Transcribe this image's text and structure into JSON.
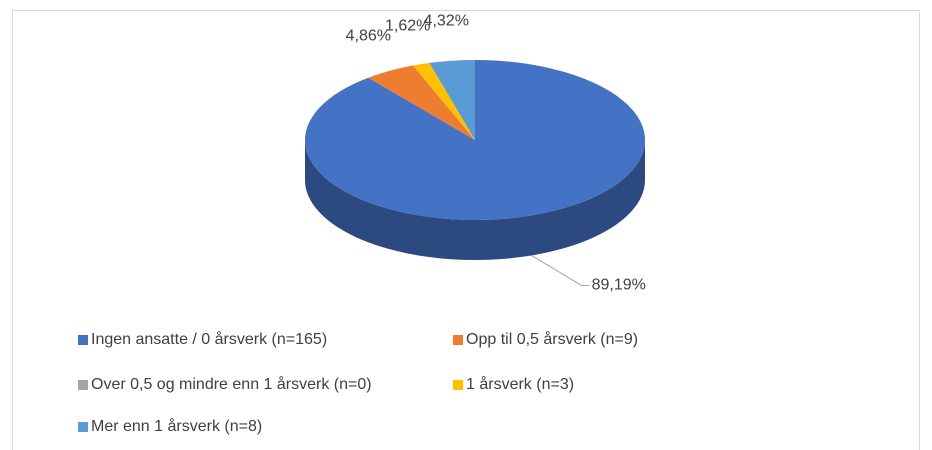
{
  "chart_data": {
    "type": "pie3d",
    "categories": [
      "Ingen ansatte / 0 årsverk (n=165)",
      "Opp til 0,5 årsverk (n=9)",
      "Over 0,5 og mindre enn 1 årsverk (n=0)",
      "1 årsverk (n=3)",
      "Mer enn 1 årsverk (n=8)"
    ],
    "values": [
      89.19,
      4.86,
      0,
      1.62,
      4.32
    ],
    "value_labels": [
      "89,19%",
      "4,86%",
      null,
      "1,62%",
      "4,32%"
    ],
    "colors": [
      "#4472c4",
      "#ed7d31",
      "#a5a5a5",
      "#ffc000",
      "#5b9bd5"
    ],
    "legend": "bottom"
  }
}
